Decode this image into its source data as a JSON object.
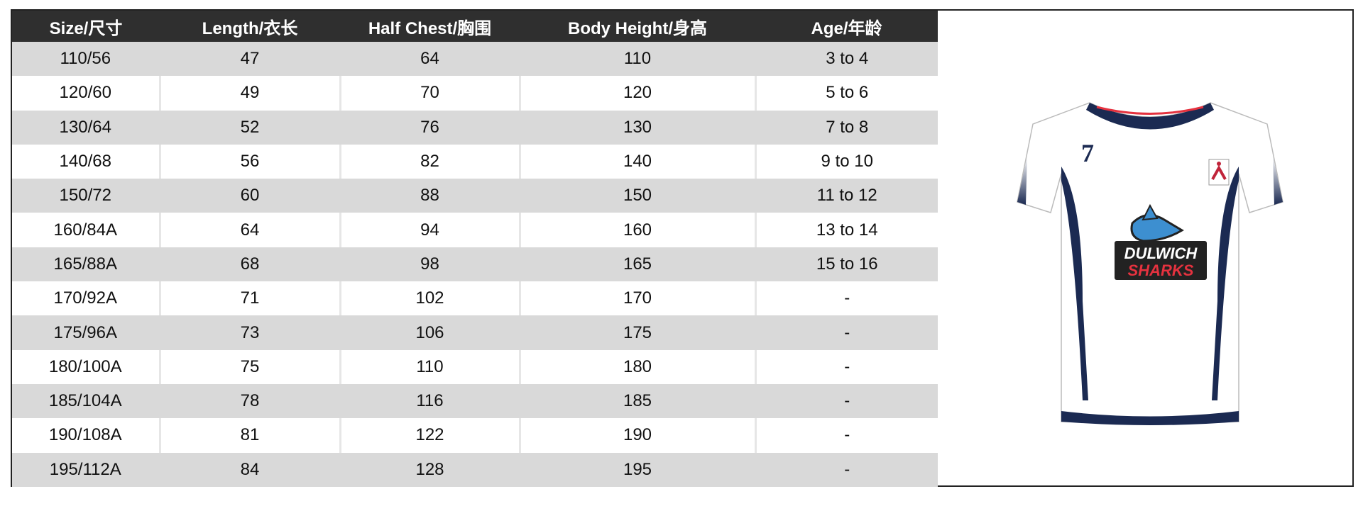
{
  "table": {
    "headers": [
      "Size/尺寸",
      "Length/衣长",
      "Half Chest/胸围",
      "Body Height/身高",
      "Age/年龄"
    ],
    "rows": [
      [
        "110/56",
        "47",
        "64",
        "110",
        "3 to 4"
      ],
      [
        "120/60",
        "49",
        "70",
        "120",
        "5 to 6"
      ],
      [
        "130/64",
        "52",
        "76",
        "130",
        "7 to 8"
      ],
      [
        "140/68",
        "56",
        "82",
        "140",
        "9 to 10"
      ],
      [
        "150/72",
        "60",
        "88",
        "150",
        "11 to 12"
      ],
      [
        "160/84A",
        "64",
        "94",
        "160",
        "13 to 14"
      ],
      [
        "165/88A",
        "68",
        "98",
        "165",
        "15 to 16"
      ],
      [
        "170/92A",
        "71",
        "102",
        "170",
        "-"
      ],
      [
        "175/96A",
        "73",
        "106",
        "175",
        "-"
      ],
      [
        "180/100A",
        "75",
        "110",
        "180",
        "-"
      ],
      [
        "185/104A",
        "78",
        "116",
        "185",
        "-"
      ],
      [
        "190/108A",
        "81",
        "122",
        "190",
        "-"
      ],
      [
        "195/112A",
        "84",
        "128",
        "195",
        "-"
      ]
    ]
  },
  "jersey": {
    "number": "7",
    "logo_line1": "DULWICH",
    "logo_line2": "SHARKS",
    "colors": {
      "navy": "#1b2a52",
      "red": "#e5323f",
      "shark_blue": "#3d8fd0"
    }
  }
}
